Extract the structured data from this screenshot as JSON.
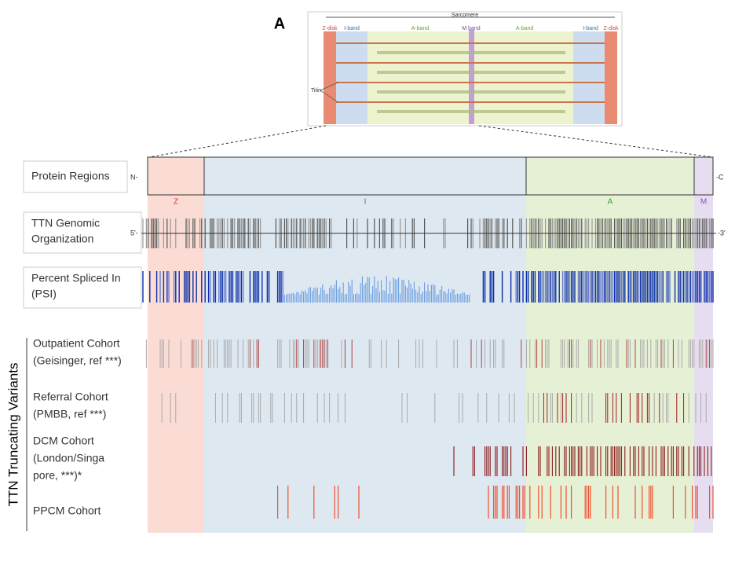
{
  "panel_label": "A",
  "sarcomere": {
    "title": "Sarcomere",
    "z_left": "Z-disk",
    "i_left": "I-band",
    "a_left": "A-band",
    "m": "M band",
    "a_right": "A-band",
    "i_right": "I-band",
    "z_right": "Z-disk",
    "titin": "Titin"
  },
  "protein_regions": {
    "label": "Protein Regions",
    "n_term": "N-",
    "c_term": "-C",
    "regions": [
      "Z",
      "I",
      "A",
      "M"
    ]
  },
  "genomic": {
    "lines": [
      "TTN Genomic",
      "Organization"
    ],
    "five": "5'-",
    "three": "-3'"
  },
  "psi": {
    "lines": [
      "Percent Spliced In",
      "(PSI)"
    ]
  },
  "variants": {
    "group_label": "TTN Truncating Variants",
    "cohorts": [
      {
        "lines": [
          "Outpatient Cohort",
          "(Geisinger, ref ***)"
        ]
      },
      {
        "lines": [
          "Referral Cohort",
          "(PMBB, ref ***)"
        ]
      },
      {
        "lines": [
          "DCM Cohort",
          "(London/Singa",
          "pore, ***)*"
        ]
      },
      {
        "lines": [
          "PPCM Cohort"
        ]
      }
    ]
  }
}
